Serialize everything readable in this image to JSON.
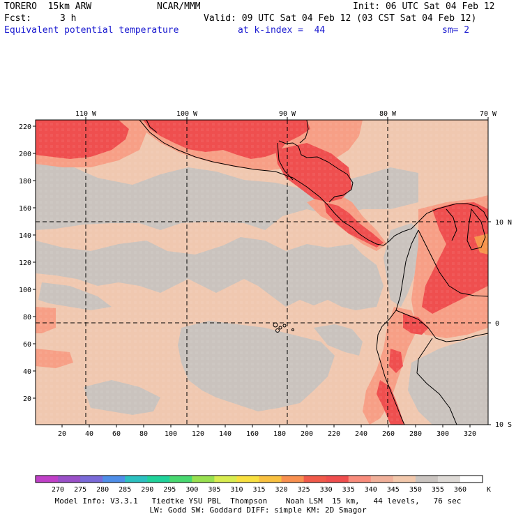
{
  "header": {
    "model": "TORERO  15km ARW",
    "center": "NCAR/MMM",
    "init": "Init: 06 UTC Sat 04 Feb 12",
    "fcst_label": "Fcst:",
    "fcst_value": "3 h",
    "valid": "Valid: 09 UTC Sat 04 Feb 12 (03 CST Sat 04 Feb 12)",
    "field": "Equivalent potential temperature",
    "level": "at k-index =  44",
    "smooth": "sm= 2"
  },
  "map": {
    "top_labels": [
      "110 W",
      "100 W",
      "90 W",
      "80 W",
      "70 W"
    ],
    "right_labels": [
      "10 N",
      "0",
      "10 S"
    ],
    "y_ticks": [
      "220",
      "200",
      "180",
      "160",
      "140",
      "120",
      "100",
      "80",
      "60",
      "40",
      "20"
    ],
    "x_ticks": [
      "20",
      "40",
      "60",
      "80",
      "100",
      "120",
      "140",
      "160",
      "180",
      "200",
      "220",
      "240",
      "260",
      "280",
      "300",
      "320"
    ]
  },
  "colorbar": {
    "labels": [
      "270",
      "275",
      "280",
      "285",
      "290",
      "295",
      "300",
      "305",
      "310",
      "315",
      "320",
      "325",
      "330",
      "335",
      "340",
      "345",
      "350",
      "355",
      "360"
    ],
    "unit": "K",
    "colors": [
      "#c040c8",
      "#9a50c8",
      "#7a6ad8",
      "#4f8ee8",
      "#2cc0c0",
      "#20d29a",
      "#48d870",
      "#98e050",
      "#d8ec50",
      "#f8e040",
      "#f8c040",
      "#f89050",
      "#f05a4a",
      "#ef4e4e",
      "#f88c7c",
      "#f0b09a",
      "#f2c8ac",
      "#cac4c0",
      "#dedad6",
      "#ffffff"
    ]
  },
  "footer": {
    "line1": "Model Info: V3.3.1   Tiedtke YSU PBL  Thompson    Noah LSM  15 km,   44 levels,   76 sec",
    "line2": "LW: Godd SW: Goddard DIFF: simple KM: 2D Smagor"
  }
}
